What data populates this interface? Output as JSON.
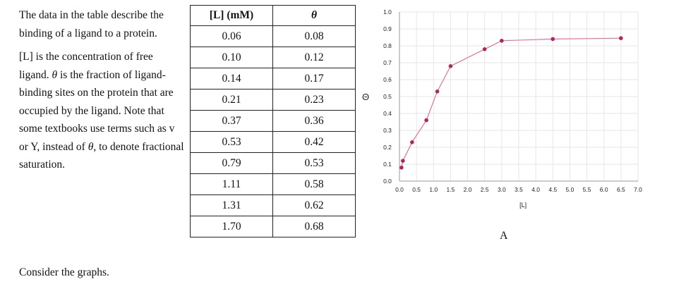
{
  "intro": {
    "p1": "The data in the table describe the binding of a ligand to a protein.",
    "p2_a": "[L] is the concentration of free ligand. ",
    "p2_theta": "θ",
    "p2_b": " is the fraction of ligand-binding sites on the protein that are occupied by the ligand. Note that some textbooks use terms such as v or Y, instead of ",
    "p2_theta2": "θ",
    "p2_c": ", to denote fractional saturation."
  },
  "closing": "Consider the graphs.",
  "table": {
    "headers": [
      "[L] (mM)",
      "θ"
    ],
    "rows": [
      [
        "0.06",
        "0.08"
      ],
      [
        "0.10",
        "0.12"
      ],
      [
        "0.14",
        "0.17"
      ],
      [
        "0.21",
        "0.23"
      ],
      [
        "0.37",
        "0.36"
      ],
      [
        "0.53",
        "0.42"
      ],
      [
        "0.79",
        "0.53"
      ],
      [
        "1.11",
        "0.58"
      ],
      [
        "1.31",
        "0.62"
      ],
      [
        "1.70",
        "0.68"
      ]
    ]
  },
  "chart_caption": "A",
  "chart_data": {
    "type": "line",
    "title": "",
    "xlabel": "[L]",
    "ylabel": "Θ",
    "xlim": [
      0,
      7
    ],
    "ylim": [
      0,
      1
    ],
    "xticks": [
      "0.0",
      "0.5",
      "1.0",
      "1.5",
      "2.0",
      "2.5",
      "3.0",
      "3.5",
      "4.0",
      "4.5",
      "5.0",
      "5.5",
      "6.0",
      "6.5",
      "7.0"
    ],
    "yticks": [
      "0.0",
      "0.1",
      "0.2",
      "0.3",
      "0.4",
      "0.5",
      "0.6",
      "0.7",
      "0.8",
      "0.9",
      "1.0"
    ],
    "grid": true,
    "series": [
      {
        "x": [
          0.06,
          0.1,
          0.37,
          0.79,
          1.11,
          1.5,
          2.5,
          3.0,
          4.5,
          6.5
        ],
        "y": [
          0.08,
          0.12,
          0.23,
          0.36,
          0.53,
          0.68,
          0.78,
          0.83,
          0.84,
          0.845
        ]
      }
    ],
    "line_color": "#e0759a",
    "marker_color": "#b0245f"
  }
}
